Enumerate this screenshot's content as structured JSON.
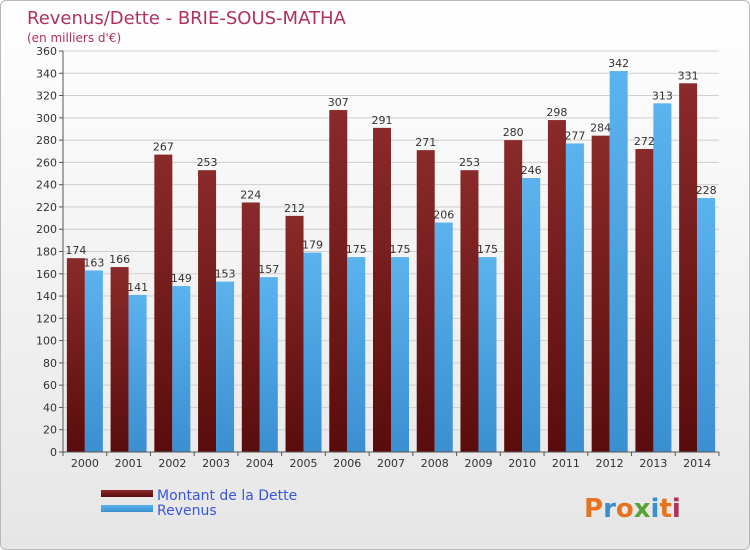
{
  "chart_data": {
    "type": "bar",
    "title": "Revenus/Dette - BRIE-SOUS-MATHA",
    "subtitle": "(en milliers d'€)",
    "categories": [
      "2000",
      "2001",
      "2002",
      "2003",
      "2004",
      "2005",
      "2006",
      "2007",
      "2008",
      "2009",
      "2010",
      "2011",
      "2012",
      "2013",
      "2014"
    ],
    "series": [
      {
        "name": "Montant de la Dette",
        "color": "#7a1a1a",
        "values": [
          174,
          166,
          267,
          253,
          224,
          212,
          307,
          291,
          271,
          253,
          280,
          298,
          284,
          272,
          331
        ]
      },
      {
        "name": "Revenus",
        "color": "#4aa3e0",
        "values": [
          163,
          141,
          149,
          153,
          157,
          179,
          175,
          175,
          206,
          175,
          246,
          277,
          342,
          313,
          228
        ]
      }
    ],
    "ylim": [
      0,
      360
    ],
    "ytick_step": 20,
    "grid": true,
    "legend_position": "bottom-left",
    "logo": "Proxiti"
  }
}
